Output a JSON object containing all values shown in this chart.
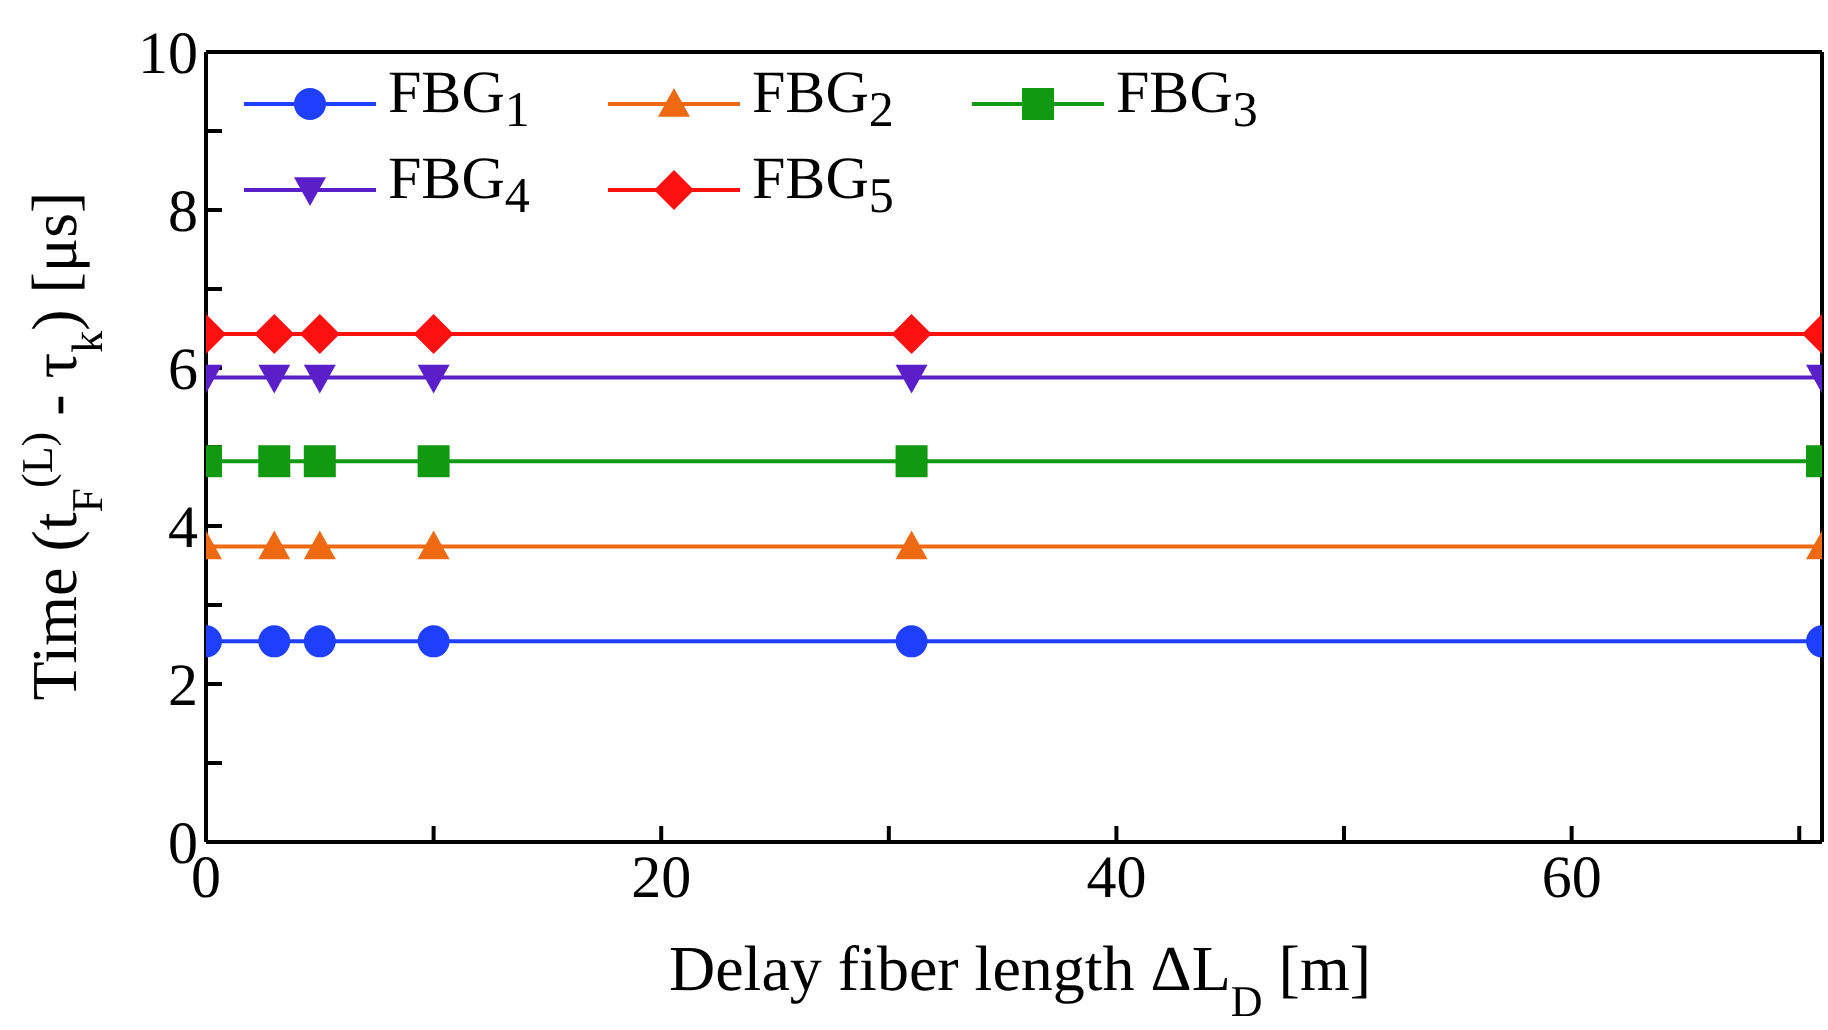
{
  "chart_data": {
    "type": "line",
    "xlabel": "Delay fiber length ΔL$_{D}$ [m]",
    "ylabel": "Time (t$_{F}$$^{(L)}$ - τ$_{k}$) [μs]",
    "x": [
      0,
      3,
      5,
      10,
      31,
      71
    ],
    "series": [
      {
        "name": "FBG$_{1}$",
        "color": "#1f3fff",
        "marker": "circle",
        "values": [
          2.54,
          2.54,
          2.54,
          2.54,
          2.54,
          2.54
        ]
      },
      {
        "name": "FBG$_{2}$",
        "color": "#ee6a12",
        "marker": "triangle",
        "values": [
          3.74,
          3.74,
          3.74,
          3.74,
          3.74,
          3.74
        ]
      },
      {
        "name": "FBG$_{3}$",
        "color": "#119a11",
        "marker": "square",
        "values": [
          4.82,
          4.82,
          4.82,
          4.82,
          4.82,
          4.82
        ]
      },
      {
        "name": "FBG$_{4}$",
        "color": "#5a1fc8",
        "marker": "triangle-down",
        "values": [
          5.88,
          5.88,
          5.88,
          5.88,
          5.88,
          5.88
        ]
      },
      {
        "name": "FBG$_{5}$",
        "color": "#ff1010",
        "marker": "diamond",
        "values": [
          6.43,
          6.43,
          6.43,
          6.43,
          6.43,
          6.43
        ]
      }
    ],
    "xlim": [
      0,
      71
    ],
    "xticks": [
      0,
      {
        "value": 10,
        "label": null
      },
      20,
      {
        "value": 30,
        "label": null
      },
      40,
      {
        "value": 50,
        "label": null
      },
      60,
      {
        "value": 70,
        "label": null
      }
    ],
    "ylim": [
      0,
      10
    ],
    "yticks": [
      0,
      {
        "value": 1,
        "label": null
      },
      2,
      {
        "value": 3,
        "label": null
      },
      4,
      {
        "value": 5,
        "label": null
      },
      6,
      {
        "value": 7,
        "label": null
      },
      8,
      {
        "value": 9,
        "label": null
      },
      10
    ],
    "grid": false,
    "legend": "top left",
    "line_style": "solid"
  }
}
